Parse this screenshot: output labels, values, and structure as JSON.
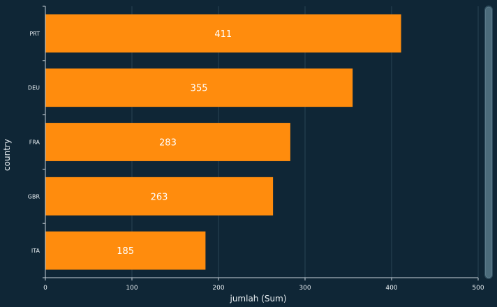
{
  "chart_data": {
    "type": "bar",
    "orientation": "horizontal",
    "categories": [
      "PRT",
      "DEU",
      "FRA",
      "GBR",
      "ITA"
    ],
    "values": [
      411,
      355,
      283,
      263,
      185
    ],
    "data_labels": [
      "411",
      "355",
      "283",
      "263",
      "185"
    ],
    "xlabel": "jumlah (Sum)",
    "ylabel": "country",
    "xlim": [
      0,
      500
    ],
    "xticks": [
      "0",
      "100",
      "200",
      "300",
      "400",
      "500"
    ],
    "grid": "vertical",
    "legend": "none"
  },
  "colors": {
    "background": "#0f2636",
    "bar": "#ff8c0d",
    "grid": "#2a4454",
    "axis": "#c9d3da",
    "text": "#e8eef2",
    "data_label": "#ffffff",
    "scrollbar_track": "#2e4d5e",
    "scrollbar_thumb": "#4b6b7b"
  },
  "icons": {
    "scrollbar": "vertical-scrollbar"
  }
}
